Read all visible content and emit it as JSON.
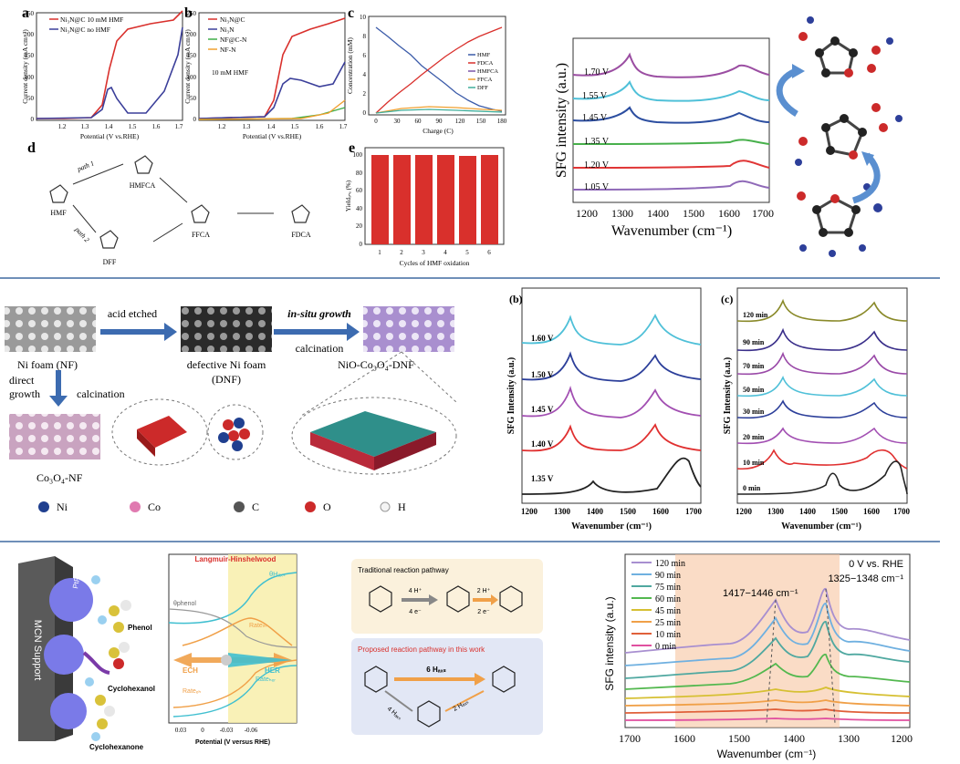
{
  "row1": {
    "panel_a": {
      "letter": "a",
      "ylabel": "Current density (mA cm⁻²)",
      "xlabel": "Potential (V vs.RHE)",
      "legend": [
        "Ni₃N@C 10 mM HMF",
        "Ni₃N@C no HMF"
      ],
      "colors": [
        "#d9302c",
        "#3b3f9a"
      ],
      "yticks": [
        "0",
        "50",
        "100",
        "150",
        "200",
        "250"
      ],
      "xticks": [
        "1.2",
        "1.3",
        "1.4",
        "1.5",
        "1.6",
        "1.7"
      ]
    },
    "panel_b": {
      "letter": "b",
      "ylabel": "Current density (mA cm⁻²)",
      "xlabel": "Potential (V vs.RHE)",
      "legend": [
        "Ni₃N@C",
        "Ni₃N",
        "NF@C-N",
        "NF-N"
      ],
      "colors": [
        "#d9302c",
        "#3b3f9a",
        "#3fae49",
        "#f0a030"
      ],
      "note": "10 mM HMF",
      "yticks": [
        "0",
        "50",
        "100",
        "150",
        "200",
        "250"
      ],
      "xticks": [
        "1.2",
        "1.3",
        "1.4",
        "1.5",
        "1.6",
        "1.7"
      ]
    },
    "panel_c": {
      "letter": "c",
      "ylabel": "Concentration (mM)",
      "xlabel": "Charge (C)",
      "legend": [
        "HMF",
        "FDCA",
        "HMFCA",
        "FFCA",
        "DFF"
      ],
      "colors": [
        "#3b5ba9",
        "#d9302c",
        "#7b55a8",
        "#f0a030",
        "#3fae9a"
      ],
      "yticks": [
        "0",
        "2",
        "4",
        "6",
        "8",
        "10"
      ],
      "xticks": [
        "0",
        "30",
        "60",
        "90",
        "120",
        "150",
        "180"
      ]
    },
    "panel_d": {
      "letter": "d",
      "labels": [
        "HMF",
        "HMFCA",
        "DFF",
        "FFCA",
        "FDCA",
        "path 1",
        "path 2"
      ]
    },
    "panel_e": {
      "letter": "e",
      "ylabel": "Yieldₓₙₐ (%)",
      "xlabel": "Cycles of  HMF oxidation",
      "yticks": [
        "0",
        "20",
        "40",
        "60",
        "80",
        "100"
      ],
      "color": "#d9302c"
    },
    "sfg_right": {
      "ylabel": "SFG intensity (a.u.)",
      "xlabel": "Wavenumber (cm⁻¹)",
      "xticks": [
        "1200",
        "1300",
        "1400",
        "1500",
        "1600",
        "1700"
      ],
      "traces": [
        {
          "label": "1.70 V",
          "color": "#9b4ea2"
        },
        {
          "label": "1.55 V",
          "color": "#4fc0d8"
        },
        {
          "label": "1.45 V",
          "color": "#2c4ea0"
        },
        {
          "label": "1.35 V",
          "color": "#47b04b"
        },
        {
          "label": "1.20 V",
          "color": "#e03535"
        },
        {
          "label": "1.05 V",
          "color": "#8f69b8"
        }
      ]
    }
  },
  "row2": {
    "scheme": {
      "acid_etched": "acid etched",
      "in_situ_growth": "in-situ growth",
      "calcination_top": "calcination",
      "ni_foam": "Ni foam (NF)",
      "defective": "defective Ni foam",
      "dnf": "(DNF)",
      "product": "NiO-Co₃O₄-DNF",
      "direct": "direct",
      "growth": "growth",
      "calcination_left": "calcination",
      "co3o4": "Co₃O₄-NF",
      "legend": [
        "Ni",
        "Co",
        "C",
        "O",
        "H"
      ],
      "legend_colors": [
        "#1f3f8f",
        "#e07ab0",
        "#555555",
        "#cc2a2a",
        "#f4f4f4"
      ]
    },
    "panel_b": {
      "letter": "(b)",
      "ylabel": "SFG Intensity (a.u.)",
      "xlabel": "Wavenumber (cm⁻¹)",
      "xticks": [
        "1200",
        "1300",
        "1400",
        "1500",
        "1600",
        "1700"
      ],
      "traces": [
        {
          "label": "1.60 V",
          "color": "#4fc0d8"
        },
        {
          "label": "1.50 V",
          "color": "#2c3f9a"
        },
        {
          "label": "1.45 V",
          "color": "#a24fb2"
        },
        {
          "label": "1.40 V",
          "color": "#e03030"
        },
        {
          "label": "1.35 V",
          "color": "#222222"
        }
      ]
    },
    "panel_c": {
      "letter": "(c)",
      "ylabel": "SFG Intensity (a.u.)",
      "xlabel": "Wavenumber (cm⁻¹)",
      "xticks": [
        "1200",
        "1300",
        "1400",
        "1500",
        "1600",
        "1700"
      ],
      "traces": [
        {
          "label": "120 min",
          "color": "#8a8a2a"
        },
        {
          "label": "90 min",
          "color": "#3a2f8a"
        },
        {
          "label": "70 min",
          "color": "#9a4aa8"
        },
        {
          "label": "50 min",
          "color": "#4fc0d8"
        },
        {
          "label": "30 min",
          "color": "#2c3f9a"
        },
        {
          "label": "20 min",
          "color": "#a24fb2"
        },
        {
          "label": "10 min",
          "color": "#e03030"
        },
        {
          "label": "0 min",
          "color": "#222222"
        }
      ]
    }
  },
  "row3": {
    "left": {
      "support": "MCN Support",
      "ptrh": "PtRh",
      "phenol": "Phenol",
      "cyclohexanol": "Cyclohexanol",
      "cyclohexanone": "Cyclohexanone"
    },
    "plot": {
      "title": "Langmuir-Hinshelwood",
      "theta_h": "θHₐₓₛ",
      "theta_phenol": "θphenol",
      "rate_lh": "Rateₗₕ",
      "ech": "ECH",
      "her": "HER",
      "rate_ech": "Rateₑₕ",
      "rate_her": "Rateₕₑᵣ",
      "xticks": [
        "0.03",
        "0",
        "-0.03",
        "-0.06"
      ],
      "xlabel": "Potential (V versus RHE)"
    },
    "pathways": {
      "traditional": "Traditional reaction pathway",
      "step1_top": "4 H⁺",
      "step1_bot": "4 e⁻",
      "step2_top": "2 H⁺",
      "step2_bot": "2 e⁻",
      "proposed": "Proposed reaction pathway in this work",
      "direct": "6 Hₐₓₛ",
      "down": "4 Hₐₓₛ",
      "up": "2 Hₐₓₛ"
    },
    "sfg": {
      "ylabel": "SFG intensity (a.u.)",
      "xlabel": "Wavenumber (cm⁻¹)",
      "xticks": [
        "1700",
        "1600",
        "1500",
        "1400",
        "1300",
        "1200"
      ],
      "condition": "0 V vs. RHE",
      "band1": "1417−1446 cm⁻¹",
      "band2": "1325−1348 cm⁻¹",
      "legend": [
        "120 min",
        "90 min",
        "75 min",
        "60 min",
        "45 min",
        "25 min",
        "10 min",
        "0 min"
      ],
      "colors": [
        "#a88fd0",
        "#6fb0e0",
        "#4fa8a0",
        "#53b84f",
        "#d6c033",
        "#f0a048",
        "#e0603a",
        "#e050a0"
      ]
    }
  }
}
